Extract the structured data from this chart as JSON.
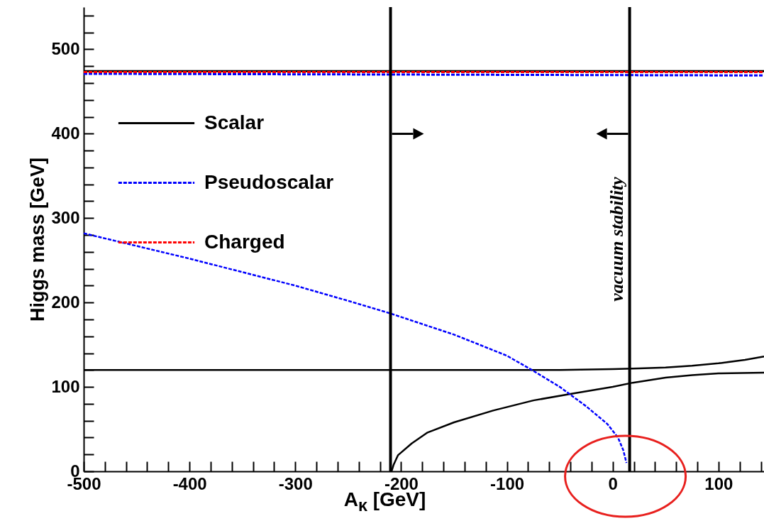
{
  "chart_data": {
    "type": "line",
    "xlabel": "A$_{κ}$ [GeV]",
    "ylabel": "Higgs mass [GeV]",
    "xlim": [
      -500,
      143
    ],
    "ylim": [
      0,
      550
    ],
    "xticks": [
      -500,
      {
        "value": -480,
        "label": null
      },
      {
        "value": -460,
        "label": null
      },
      {
        "value": -440,
        "label": null
      },
      {
        "value": -420,
        "label": null
      },
      -400,
      {
        "value": -380,
        "label": null
      },
      {
        "value": -360,
        "label": null
      },
      {
        "value": -340,
        "label": null
      },
      {
        "value": -320,
        "label": null
      },
      -300,
      {
        "value": -280,
        "label": null
      },
      {
        "value": -260,
        "label": null
      },
      {
        "value": -240,
        "label": null
      },
      {
        "value": -220,
        "label": null
      },
      -200,
      {
        "value": -180,
        "label": null
      },
      {
        "value": -160,
        "label": null
      },
      {
        "value": -140,
        "label": null
      },
      {
        "value": -120,
        "label": null
      },
      -100,
      {
        "value": -80,
        "label": null
      },
      {
        "value": -60,
        "label": null
      },
      {
        "value": -40,
        "label": null
      },
      {
        "value": -20,
        "label": null
      },
      0,
      {
        "value": 20,
        "label": null
      },
      {
        "value": 40,
        "label": null
      },
      {
        "value": 60,
        "label": null
      },
      {
        "value": 80,
        "label": null
      },
      100,
      {
        "value": 120,
        "label": null
      },
      {
        "value": 140,
        "label": null
      }
    ],
    "yticks": [
      0,
      {
        "value": 20,
        "label": null
      },
      {
        "value": 40,
        "label": null
      },
      {
        "value": 60,
        "label": null
      },
      {
        "value": 80,
        "label": null
      },
      100,
      {
        "value": 120,
        "label": null
      },
      {
        "value": 140,
        "label": null
      },
      {
        "value": 160,
        "label": null
      },
      {
        "value": 180,
        "label": null
      },
      200,
      {
        "value": 220,
        "label": null
      },
      {
        "value": 240,
        "label": null
      },
      {
        "value": 260,
        "label": null
      },
      {
        "value": 280,
        "label": null
      },
      300,
      {
        "value": 320,
        "label": null
      },
      {
        "value": 340,
        "label": null
      },
      {
        "value": 360,
        "label": null
      },
      {
        "value": 380,
        "label": null
      },
      400,
      {
        "value": 420,
        "label": null
      },
      {
        "value": 440,
        "label": null
      },
      {
        "value": 460,
        "label": null
      },
      {
        "value": 480,
        "label": null
      },
      500,
      {
        "value": 520,
        "label": null
      },
      {
        "value": 540,
        "label": null
      }
    ],
    "grid": false,
    "legend": "top left",
    "marker": "none",
    "series": [
      {
        "name": "Scalar",
        "color": "#000000",
        "line_style": "solid",
        "x": [
          -500,
          143
        ],
        "values": [
          474,
          474
        ]
      },
      {
        "name": "Pseudoscalar",
        "color": "#0000ff",
        "line_style": "dashed",
        "x": [
          -500,
          143
        ],
        "values": [
          471,
          469
        ]
      },
      {
        "name": "Charged",
        "color": "#ff0000",
        "line_style": "dashed",
        "x": [
          -500,
          143
        ],
        "values": [
          473,
          473
        ]
      },
      {
        "color": "#000000",
        "line_style": "solid",
        "x": [
          -500,
          -100,
          -50,
          0,
          25,
          50,
          75,
          100,
          125,
          143
        ],
        "values": [
          120,
          120,
          120,
          121,
          122,
          123,
          125,
          128,
          132,
          136
        ]
      },
      {
        "color": "#000000",
        "line_style": "solid",
        "x": [
          -209,
          -207,
          -203,
          -190,
          -175,
          -150,
          -113,
          -75,
          -38,
          0,
          19,
          50,
          75,
          100,
          143
        ],
        "values": [
          0,
          8,
          19,
          33,
          46,
          58,
          72,
          84,
          92,
          100,
          105,
          111,
          114,
          116,
          117
        ]
      },
      {
        "color": "#0000ff",
        "line_style": "dashed",
        "x": [
          -500,
          -450,
          -400,
          -350,
          -300,
          -250,
          -210,
          -150,
          -100,
          -75,
          -50,
          -25,
          -5,
          5,
          10,
          13
        ],
        "values": [
          282,
          267,
          252,
          236,
          220,
          202,
          187,
          162,
          137,
          119,
          100,
          77,
          56,
          40,
          25,
          10
        ]
      }
    ],
    "ref_lines": [
      {
        "axis": "x",
        "value": -210,
        "label": null,
        "color": "#000000"
      },
      {
        "axis": "x",
        "value": 16,
        "label": "vacuum stability",
        "color": "#000000"
      }
    ]
  }
}
